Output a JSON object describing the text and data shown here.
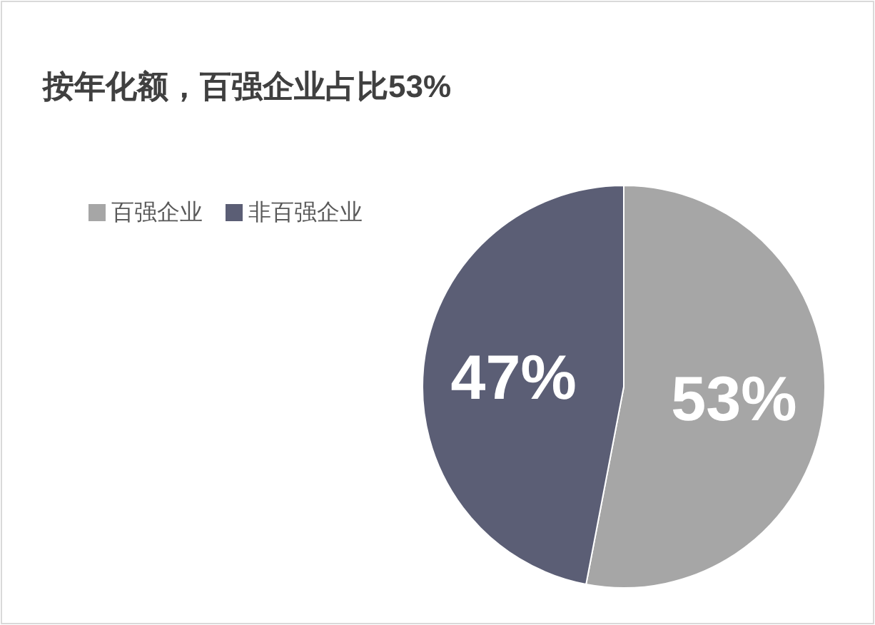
{
  "chart_data": {
    "type": "pie",
    "title": "按年化额，百强企业占比53%",
    "categories": [
      "百强企业",
      "非百强企业"
    ],
    "values": [
      53,
      47
    ],
    "colors": [
      "#a6a6a6",
      "#5b5e75"
    ],
    "value_labels": [
      "53%",
      "47%"
    ],
    "legend": "top left"
  }
}
